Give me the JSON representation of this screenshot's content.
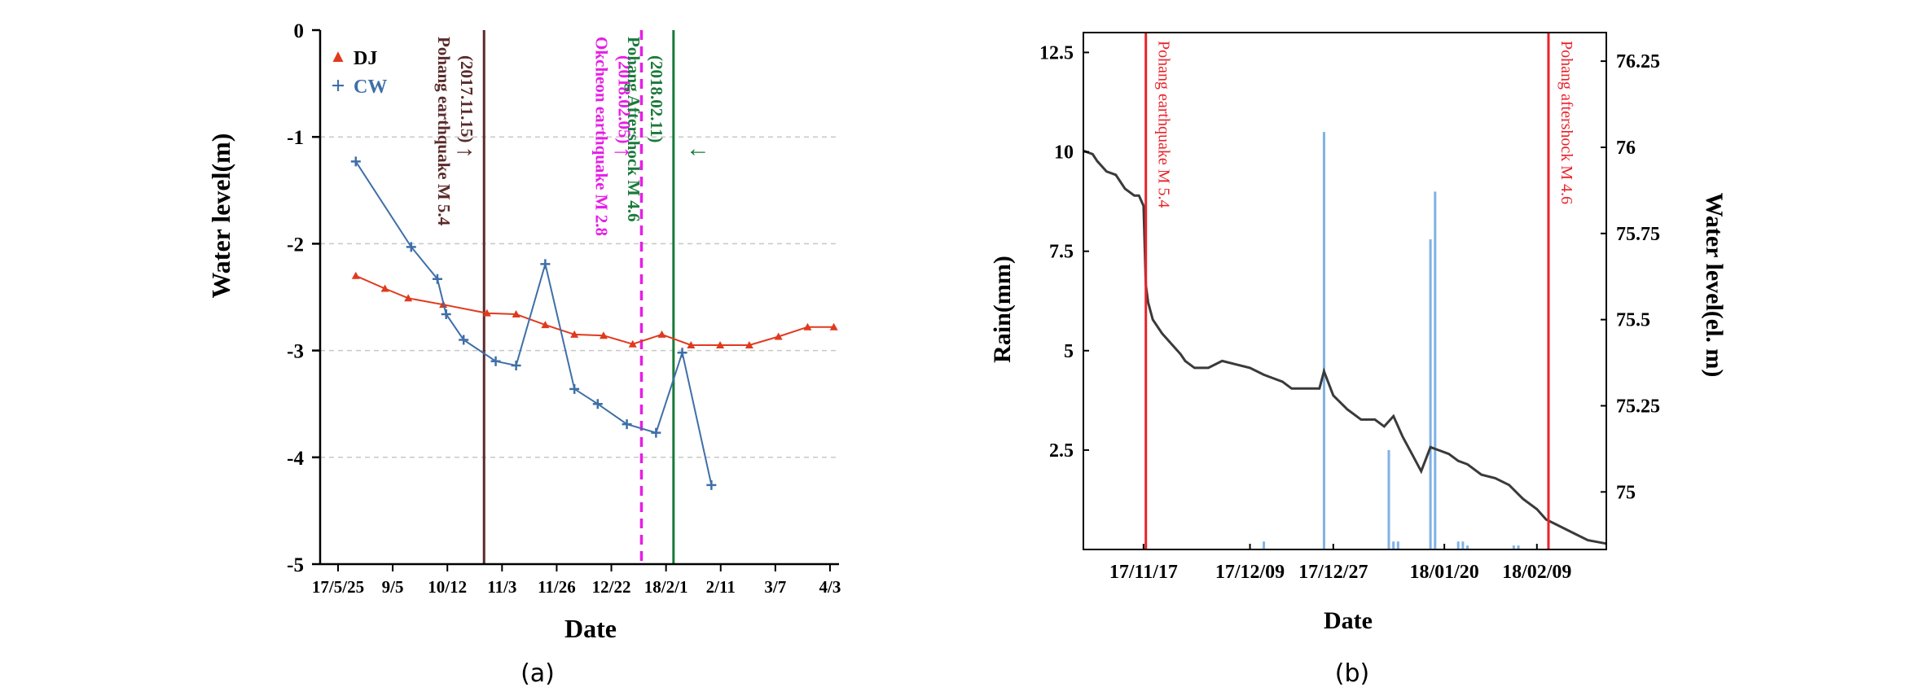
{
  "chart_data": [
    {
      "type": "line",
      "panel_label": "(a)",
      "xlabel": "Date",
      "ylabel": "Water level(m)",
      "ylim": [
        -5,
        0
      ],
      "yticks": [
        0,
        -1,
        -2,
        -3,
        -4,
        -5
      ],
      "xtick_labels": [
        "17/5/25",
        "9/5",
        "10/12",
        "11/3",
        "11/26",
        "12/22",
        "18/2/1",
        "2/11",
        "3/7",
        "4/3"
      ],
      "x_range": [
        0,
        17
      ],
      "series": [
        {
          "name": "DJ",
          "marker": "▲",
          "color": "#e03a1e",
          "x": [
            1,
            2,
            2.8,
            4,
            5.5,
            6.5,
            7.5,
            8.5,
            9.5,
            10.5,
            11.5,
            12.5,
            13.5,
            14.5,
            15.5,
            16.5,
            17.4
          ],
          "values": [
            -2.3,
            -2.42,
            -2.51,
            -2.57,
            -2.65,
            -2.66,
            -2.76,
            -2.85,
            -2.86,
            -2.94,
            -2.85,
            -2.95,
            -2.95,
            -2.95,
            -2.87,
            -2.78,
            -2.78
          ]
        },
        {
          "name": "CW",
          "marker": "+",
          "color": "#3f6fa8",
          "x": [
            1,
            2.9,
            3.8,
            4.1,
            4.7,
            5.8,
            6.5,
            7.5,
            8.5,
            9.3,
            10.3,
            11.3,
            12.2,
            13.2
          ],
          "values": [
            -1.23,
            -2.03,
            -2.33,
            -2.66,
            -2.9,
            -3.1,
            -3.14,
            -2.19,
            -3.36,
            -3.5,
            -3.69,
            -3.77,
            -3.02,
            -4.26
          ]
        }
      ],
      "events": [
        {
          "label": "Pohang earthquake M 5.4",
          "date": "(2017.11.15)",
          "x": 5.4,
          "color": "#5a2a2a",
          "style": "solid",
          "arrow": "→"
        },
        {
          "label": "Okcheon earthquake M 2.8",
          "date": "(2018.02.05)",
          "x": 10.8,
          "color": "#e61ee6",
          "style": "dashed",
          "arrow": "→"
        },
        {
          "label": "Pohang Aftershock M 4.6",
          "date": "(2018.02.11)",
          "x": 11.9,
          "color": "#1a7a3a",
          "style": "solid",
          "arrow": "←"
        }
      ]
    },
    {
      "type": "line",
      "panel_label": "(b)",
      "xlabel": "Date",
      "ylabel": "Rain(mm)",
      "y2label": "Water level(el. m)",
      "ylim": [
        0,
        13
      ],
      "yticks": [
        2.5,
        5,
        7.5,
        10,
        12.5
      ],
      "y2lim": [
        74.833,
        76.333
      ],
      "y2ticks": [
        75,
        75.25,
        75.5,
        75.75,
        76,
        76.25
      ],
      "x_range": [
        0,
        113
      ],
      "xtick_labels": [
        "17/11/17",
        "17/12/09",
        "17/12/27",
        "18/01/20",
        "18/02/09"
      ],
      "xtick_pos": [
        13,
        36,
        54,
        78,
        98
      ],
      "rain": {
        "name": "Rain",
        "color": "#7fb2e5",
        "x": [
          39,
          52,
          66,
          67,
          68,
          75,
          76,
          81,
          82,
          83,
          93,
          94
        ],
        "values": [
          0.2,
          10.5,
          2.5,
          0.2,
          0.2,
          7.8,
          9,
          0.2,
          0.2,
          0.1,
          0.1,
          0.1
        ]
      },
      "water_level": {
        "name": "Water level",
        "color": "#3a3a3a",
        "x": [
          0,
          2,
          3,
          5,
          7,
          9,
          11,
          12,
          13,
          13.5,
          14,
          15,
          17,
          19,
          21,
          22,
          24,
          27,
          30,
          33,
          36,
          39,
          41,
          43,
          45,
          48,
          51,
          52,
          54,
          57,
          60,
          63,
          65,
          67,
          69,
          71,
          73,
          75,
          77,
          79,
          81,
          83,
          86,
          89,
          92,
          95,
          98,
          100,
          103,
          106,
          109,
          113
        ],
        "values": [
          75.99,
          75.98,
          75.96,
          75.93,
          75.92,
          75.88,
          75.86,
          75.86,
          75.83,
          75.6,
          75.55,
          75.5,
          75.46,
          75.43,
          75.4,
          75.38,
          75.36,
          75.36,
          75.38,
          75.37,
          75.36,
          75.34,
          75.33,
          75.32,
          75.3,
          75.3,
          75.3,
          75.35,
          75.28,
          75.24,
          75.21,
          75.21,
          75.19,
          75.22,
          75.16,
          75.11,
          75.06,
          75.13,
          75.12,
          75.11,
          75.09,
          75.08,
          75.05,
          75.04,
          75.02,
          74.98,
          74.95,
          74.92,
          74.9,
          74.88,
          74.86,
          74.85
        ]
      },
      "events": [
        {
          "label": "Pohang earthquake M 5.4",
          "x": 13.5,
          "color": "#e8222a"
        },
        {
          "label": "Pohang aftershock M 4.6",
          "x": 100.5,
          "color": "#e8222a"
        }
      ]
    }
  ]
}
